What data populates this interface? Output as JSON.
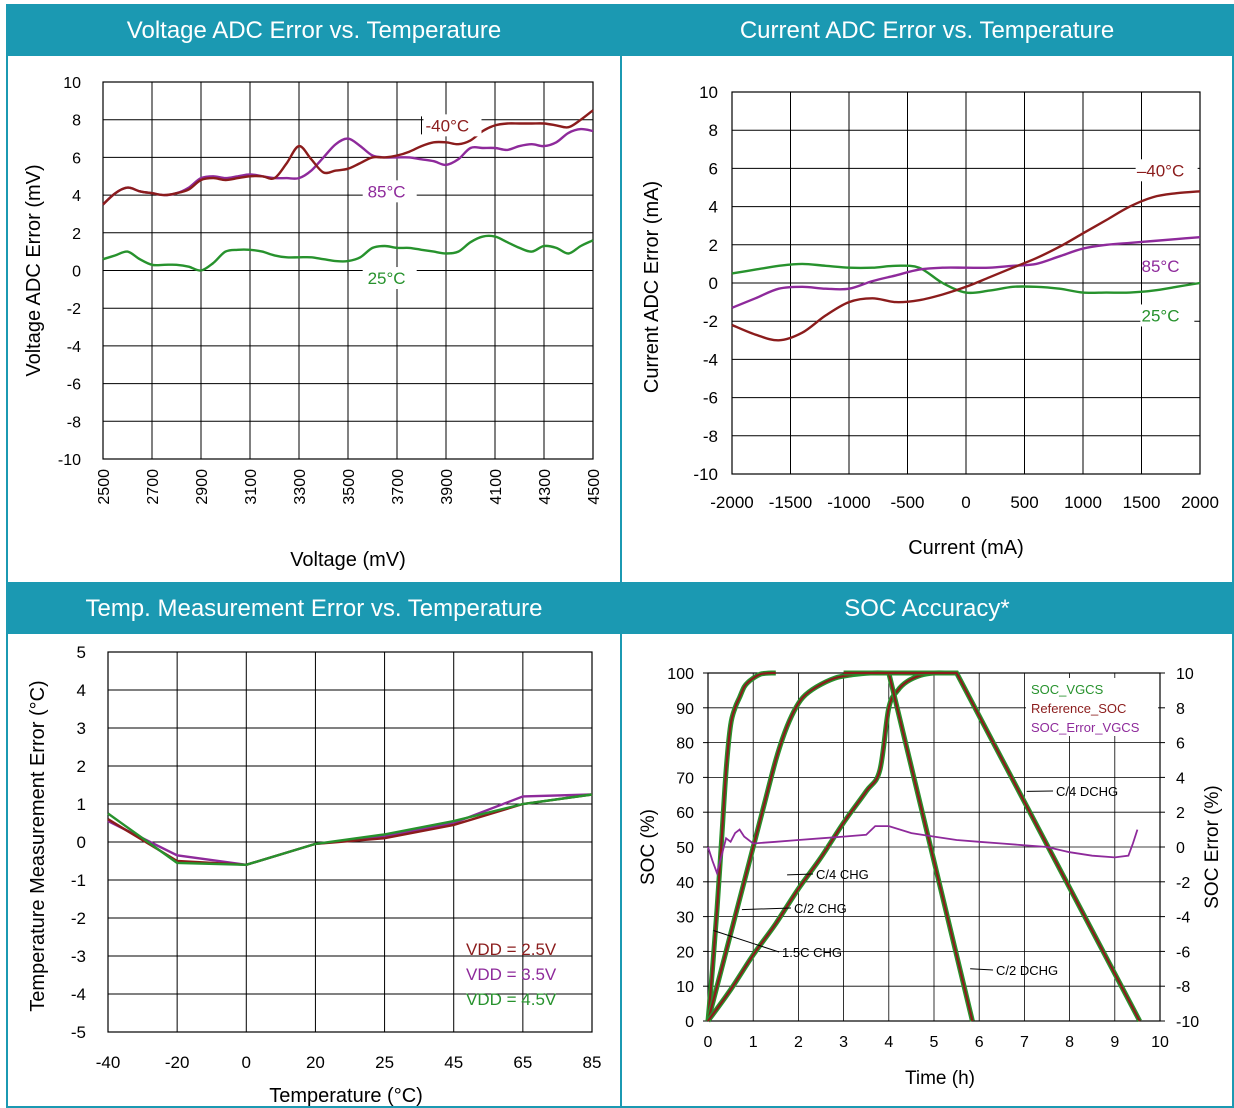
{
  "colors": {
    "header": "#1b99b2",
    "red": "#8b1c1c",
    "purple": "#8e2a9b",
    "green": "#27922d",
    "grid": "#000000"
  },
  "chart_data": [
    {
      "type": "line",
      "title": "Voltage ADC Error vs. Temperature",
      "xlabel": "Voltage (mV)",
      "ylabel": "Voltage ADC Error (mV)",
      "xlim": [
        2500,
        4500
      ],
      "ylim": [
        -10,
        10
      ],
      "xticks": [
        2500,
        2700,
        2900,
        3100,
        3300,
        3500,
        3700,
        3900,
        4100,
        4300,
        4500
      ],
      "yticks": [
        -10,
        -8,
        -6,
        -4,
        -2,
        0,
        2,
        4,
        6,
        8,
        10
      ],
      "series": [
        {
          "name": "-40°C",
          "color": "#8b1c1c",
          "x": [
            2500,
            2550,
            2600,
            2650,
            2700,
            2750,
            2800,
            2850,
            2900,
            2950,
            3000,
            3050,
            3100,
            3150,
            3200,
            3250,
            3300,
            3350,
            3400,
            3450,
            3500,
            3550,
            3600,
            3650,
            3700,
            3750,
            3800,
            3850,
            3900,
            3950,
            4000,
            4050,
            4100,
            4150,
            4200,
            4250,
            4300,
            4350,
            4400,
            4450,
            4500
          ],
          "y": [
            3.5,
            4.1,
            4.4,
            4.2,
            4.1,
            4.0,
            4.1,
            4.3,
            4.8,
            4.9,
            4.8,
            4.9,
            5.0,
            5.0,
            4.9,
            5.7,
            6.6,
            5.9,
            5.2,
            5.3,
            5.4,
            5.7,
            6.0,
            6.0,
            6.1,
            6.3,
            6.6,
            6.8,
            6.8,
            6.7,
            6.9,
            7.4,
            7.7,
            7.8,
            7.8,
            7.8,
            7.8,
            7.7,
            7.6,
            8.0,
            8.5
          ]
        },
        {
          "name": "85°C",
          "color": "#8e2a9b",
          "x": [
            2500,
            2550,
            2600,
            2650,
            2700,
            2750,
            2800,
            2850,
            2900,
            2950,
            3000,
            3050,
            3100,
            3150,
            3200,
            3250,
            3300,
            3350,
            3400,
            3450,
            3500,
            3550,
            3600,
            3650,
            3700,
            3750,
            3800,
            3850,
            3900,
            3950,
            4000,
            4050,
            4100,
            4150,
            4200,
            4250,
            4300,
            4350,
            4400,
            4450,
            4500
          ],
          "y": [
            3.5,
            4.1,
            4.4,
            4.2,
            4.1,
            4.0,
            4.1,
            4.4,
            4.9,
            5.0,
            4.9,
            5.0,
            5.1,
            5.0,
            4.9,
            4.9,
            4.9,
            5.3,
            6.0,
            6.7,
            7.0,
            6.6,
            6.1,
            6.0,
            6.0,
            6.0,
            5.9,
            5.8,
            5.6,
            5.9,
            6.5,
            6.5,
            6.5,
            6.4,
            6.6,
            6.7,
            6.6,
            6.8,
            7.3,
            7.5,
            7.4
          ]
        },
        {
          "name": "25°C",
          "color": "#27922d",
          "x": [
            2500,
            2550,
            2600,
            2650,
            2700,
            2750,
            2800,
            2850,
            2900,
            2950,
            3000,
            3050,
            3100,
            3150,
            3200,
            3250,
            3300,
            3350,
            3400,
            3450,
            3500,
            3550,
            3600,
            3650,
            3700,
            3750,
            3800,
            3850,
            3900,
            3950,
            4000,
            4050,
            4100,
            4150,
            4200,
            4250,
            4300,
            4350,
            4400,
            4450,
            4500
          ],
          "y": [
            0.6,
            0.8,
            1.0,
            0.6,
            0.3,
            0.3,
            0.3,
            0.2,
            0.0,
            0.4,
            1.0,
            1.1,
            1.1,
            1.0,
            0.8,
            0.7,
            0.7,
            0.7,
            0.6,
            0.5,
            0.5,
            0.7,
            1.2,
            1.3,
            1.2,
            1.2,
            1.1,
            1.0,
            0.9,
            1.0,
            1.5,
            1.8,
            1.8,
            1.5,
            1.2,
            1.0,
            1.3,
            1.2,
            0.9,
            1.3,
            1.6
          ]
        }
      ],
      "annotations": [
        {
          "text": "-40°C",
          "series": "-40°C"
        },
        {
          "text": "85°C",
          "series": "85°C"
        },
        {
          "text": "25°C",
          "series": "25°C"
        }
      ]
    },
    {
      "type": "line",
      "title": "Current ADC Error vs. Temperature",
      "xlabel": "Current (mA)",
      "ylabel": "Current ADC Error  (mA)",
      "xlim": [
        -2000,
        2000
      ],
      "ylim": [
        -10,
        10
      ],
      "xticks": [
        -2000,
        -1500,
        -1000,
        -500,
        0,
        500,
        1000,
        1500,
        2000
      ],
      "yticks": [
        -10,
        -8,
        -6,
        -4,
        -2,
        0,
        2,
        4,
        6,
        8,
        10
      ],
      "series": [
        {
          "name": "–40°C",
          "color": "#8b1c1c",
          "x": [
            -2000,
            -1800,
            -1600,
            -1400,
            -1200,
            -1000,
            -800,
            -600,
            -400,
            -200,
            0,
            200,
            400,
            600,
            800,
            1000,
            1200,
            1400,
            1600,
            1800,
            2000
          ],
          "y": [
            -2.2,
            -2.7,
            -3.0,
            -2.6,
            -1.7,
            -1.0,
            -0.8,
            -1.0,
            -0.9,
            -0.6,
            -0.2,
            0.3,
            0.8,
            1.3,
            1.9,
            2.6,
            3.3,
            4.0,
            4.5,
            4.7,
            4.8
          ]
        },
        {
          "name": "85°C",
          "color": "#8e2a9b",
          "x": [
            -2000,
            -1800,
            -1600,
            -1400,
            -1200,
            -1000,
            -800,
            -600,
            -400,
            -200,
            0,
            200,
            400,
            600,
            800,
            1000,
            1200,
            1400,
            1600,
            1800,
            2000
          ],
          "y": [
            -1.3,
            -0.8,
            -0.3,
            -0.2,
            -0.3,
            -0.3,
            0.1,
            0.4,
            0.7,
            0.8,
            0.8,
            0.8,
            0.9,
            1.0,
            1.4,
            1.8,
            2.0,
            2.1,
            2.2,
            2.3,
            2.4
          ]
        },
        {
          "name": "25°C",
          "color": "#27922d",
          "x": [
            -2000,
            -1800,
            -1600,
            -1400,
            -1200,
            -1000,
            -800,
            -600,
            -400,
            -200,
            0,
            200,
            400,
            600,
            800,
            1000,
            1200,
            1400,
            1600,
            1800,
            2000
          ],
          "y": [
            0.5,
            0.7,
            0.9,
            1.0,
            0.9,
            0.8,
            0.8,
            0.9,
            0.8,
            0.0,
            -0.5,
            -0.4,
            -0.2,
            -0.2,
            -0.3,
            -0.5,
            -0.5,
            -0.5,
            -0.4,
            -0.2,
            0.0
          ]
        }
      ],
      "annotations": [
        {
          "text": "–40°C",
          "series": "–40°C"
        },
        {
          "text": "85°C",
          "series": "85°C"
        },
        {
          "text": "25°C",
          "series": "25°C"
        }
      ]
    },
    {
      "type": "line",
      "title": "Temp. Measurement Error vs. Temperature",
      "xlabel": "Temperature (°C)",
      "ylabel": "Temperature Measurement Error (°C)",
      "categories": [
        "-40",
        "-20",
        "0",
        "20",
        "25",
        "45",
        "65",
        "85"
      ],
      "ylim": [
        -5,
        5
      ],
      "yticks": [
        -5,
        -4,
        -3,
        -2,
        -1,
        0,
        1,
        2,
        3,
        4,
        5
      ],
      "series": [
        {
          "name": "VDD = 2.5V",
          "color": "#8b1c1c",
          "values": [
            0.6,
            -0.5,
            -0.6,
            -0.05,
            0.1,
            0.45,
            1.0,
            1.25
          ]
        },
        {
          "name": "VDD = 3.5V",
          "color": "#8e2a9b",
          "values": [
            0.55,
            -0.35,
            -0.6,
            -0.05,
            0.15,
            0.5,
            1.2,
            1.25
          ]
        },
        {
          "name": "VDD = 4.5V",
          "color": "#27922d",
          "values": [
            0.75,
            -0.55,
            -0.6,
            -0.05,
            0.2,
            0.55,
            1.0,
            1.25
          ]
        }
      ],
      "legend": "bottom-right"
    },
    {
      "type": "line",
      "title": "SOC Accuracy*",
      "xlabel": "Time (h)",
      "ylabel": "SOC (%)",
      "y2label": "SOC Error (%)",
      "xlim": [
        0,
        10
      ],
      "ylim": [
        0,
        100
      ],
      "y2lim": [
        -10,
        10
      ],
      "xticks": [
        0,
        1,
        2,
        3,
        4,
        5,
        6,
        7,
        8,
        9,
        10
      ],
      "yticks": [
        0,
        10,
        20,
        30,
        40,
        50,
        60,
        70,
        80,
        90,
        100
      ],
      "y2ticks": [
        -10,
        -8,
        -6,
        -4,
        -2,
        0,
        2,
        4,
        6,
        8,
        10
      ],
      "legend": "top-right",
      "legend_entries": [
        {
          "name": "SOC_VGCS",
          "color": "#27922d"
        },
        {
          "name": "Reference_SOC",
          "color": "#8b1c1c"
        },
        {
          "name": "SOC_Error_VGCS",
          "color": "#8e2a9b"
        }
      ],
      "series": [
        {
          "name": "1.5C CHG",
          "color": "#8b1c1c",
          "x": [
            0,
            0.1,
            0.2,
            0.3,
            0.4,
            0.5,
            0.6,
            0.7,
            0.8,
            0.9,
            1.0,
            1.1,
            1.2,
            1.4,
            1.5
          ],
          "y": [
            0,
            15,
            32,
            52,
            72,
            85,
            90,
            93,
            96,
            97.5,
            98.5,
            99.3,
            99.8,
            100,
            100
          ]
        },
        {
          "name": "C/2 CHG",
          "color": "#8b1c1c",
          "x": [
            0,
            0.3,
            0.6,
            0.9,
            1.2,
            1.5,
            1.7,
            1.9,
            2.1,
            2.4,
            2.8,
            3.2,
            3.6,
            4.0
          ],
          "y": [
            0,
            15,
            30,
            45,
            60,
            75,
            83,
            89,
            93,
            96,
            98.5,
            99.5,
            100,
            100
          ]
        },
        {
          "name": "C/4 CHG",
          "color": "#8b1c1c",
          "x": [
            0,
            0.5,
            1.0,
            1.5,
            2.0,
            2.5,
            3.0,
            3.5,
            3.8,
            4.0,
            4.2,
            4.4,
            4.7,
            5.0,
            5.3
          ],
          "y": [
            0,
            9,
            19,
            28,
            38,
            47,
            57,
            66,
            72,
            90,
            95,
            97.5,
            99.3,
            100,
            100
          ]
        },
        {
          "name": "C/2 DCHG",
          "color": "#8b1c1c",
          "x": [
            3.0,
            4.0,
            5.85
          ],
          "y": [
            100,
            100,
            0
          ]
        },
        {
          "name": "C/4 DCHG",
          "color": "#8b1c1c",
          "x": [
            4.0,
            5.5,
            9.55
          ],
          "y": [
            100,
            100,
            0
          ]
        },
        {
          "name": "SOC_Error_VGCS",
          "color": "#8e2a9b",
          "axis": "y2",
          "x": [
            0,
            0.1,
            0.2,
            0.3,
            0.4,
            0.5,
            0.6,
            0.7,
            0.8,
            1.0,
            1.5,
            2.0,
            2.5,
            3.0,
            3.5,
            3.7,
            4.0,
            4.5,
            5.0,
            5.5,
            6.0,
            6.5,
            7.0,
            7.5,
            8.0,
            8.5,
            9.0,
            9.3,
            9.4,
            9.5
          ],
          "y": [
            0,
            -0.8,
            -1.5,
            -0.5,
            0.5,
            0.3,
            0.8,
            1.0,
            0.6,
            0.2,
            0.3,
            0.4,
            0.5,
            0.6,
            0.7,
            1.2,
            1.2,
            0.8,
            0.6,
            0.4,
            0.3,
            0.2,
            0.1,
            0.0,
            -0.3,
            -0.5,
            -0.6,
            -0.5,
            0.2,
            1.0
          ]
        }
      ],
      "annotations": [
        {
          "text": "1.5C CHG",
          "series": "1.5C CHG"
        },
        {
          "text": "C/2 CHG",
          "series": "C/2 CHG"
        },
        {
          "text": "C/4 CHG",
          "series": "C/4 CHG"
        },
        {
          "text": "C/2 DCHG",
          "series": "C/2 DCHG"
        },
        {
          "text": "C/4 DCHG",
          "series": "C/4 DCHG"
        }
      ]
    }
  ]
}
